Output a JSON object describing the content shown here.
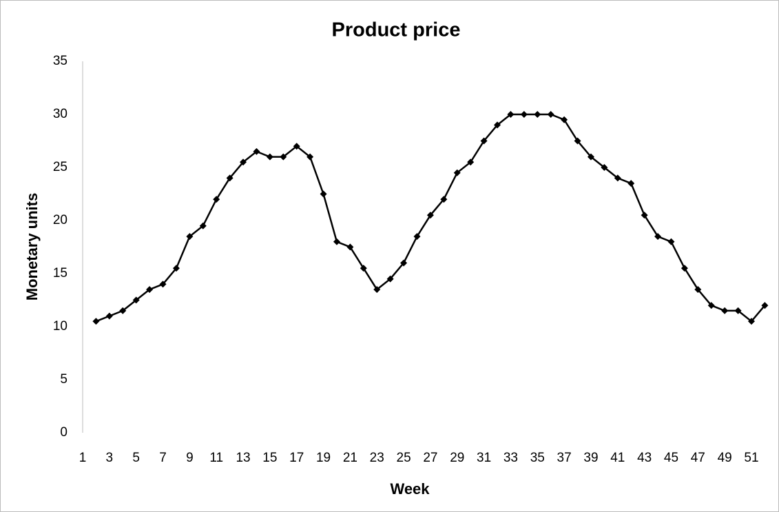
{
  "chart_data": {
    "type": "line",
    "title": "Product price",
    "x_label": "Week",
    "y_label": "Monetary units",
    "categories": [
      "1",
      null,
      "3",
      null,
      "5",
      null,
      "7",
      null,
      "9",
      null,
      "11",
      null,
      "13",
      null,
      "15",
      null,
      "17",
      null,
      "19",
      null,
      "21",
      null,
      "23",
      null,
      "25",
      null,
      "27",
      null,
      "29",
      null,
      "31",
      null,
      "33",
      null,
      "35",
      null,
      "37",
      null,
      "39",
      null,
      "41",
      null,
      "43",
      null,
      "45",
      null,
      "47",
      null,
      "49",
      null,
      "51",
      null
    ],
    "series": [
      {
        "name": "Product price",
        "color": "#000000",
        "values": [
          null,
          10.5,
          11,
          11.5,
          12.5,
          13.5,
          14,
          15.5,
          18.5,
          19.5,
          22,
          24,
          25.5,
          26.5,
          26,
          26,
          27,
          26,
          22.5,
          18,
          17.5,
          15.5,
          13.5,
          14.5,
          16,
          18.5,
          20.5,
          22,
          24.5,
          25.5,
          27.5,
          29,
          30,
          30,
          30,
          30,
          29.5,
          27.5,
          26,
          25,
          24,
          23.5,
          20.5,
          18.5,
          18,
          15.5,
          13.5,
          12,
          11.5,
          11.5,
          10.5,
          12
        ]
      }
    ],
    "ylim": [
      0,
      35
    ],
    "yticks": [
      0,
      5,
      10,
      15,
      20,
      25,
      30,
      35
    ],
    "grid": false,
    "legend": false
  }
}
